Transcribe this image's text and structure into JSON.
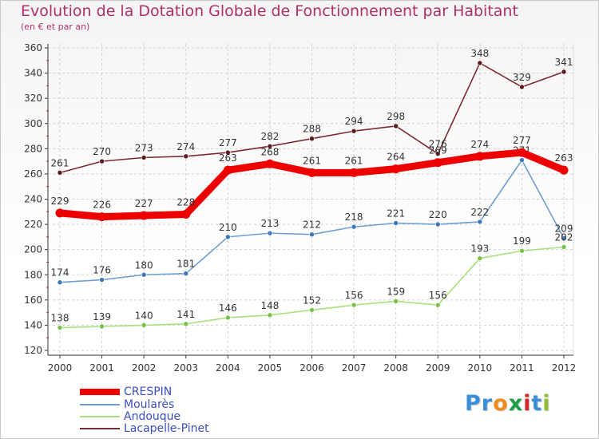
{
  "title": "Evolution de la Dotation Globale de Fonctionnement par Habitant",
  "subtitle": "(en € et par an)",
  "brand": {
    "text": "Proxiti",
    "letters": [
      "P",
      "r",
      "o",
      "x",
      "i",
      "t",
      "i"
    ],
    "colors": [
      "#3a8fd9",
      "#3a8fd9",
      "#f28b1e",
      "#1c9e47",
      "#d62a2a",
      "#3a8fd9",
      "#8fbf2f"
    ]
  },
  "chart_data": {
    "type": "line",
    "title": "Evolution de la Dotation Globale de Fonctionnement par Habitant",
    "subtitle": "(en € et par an)",
    "xlabel": "",
    "ylabel": "",
    "ylim": [
      120,
      360
    ],
    "yticks": [
      120,
      140,
      160,
      180,
      200,
      220,
      240,
      260,
      280,
      300,
      320,
      340,
      360
    ],
    "grid": true,
    "legend_position": "bottom-left",
    "categories": [
      "2000",
      "2001",
      "2002",
      "2003",
      "2004",
      "2005",
      "2006",
      "2007",
      "2008",
      "2009",
      "2010",
      "2011",
      "2012"
    ],
    "series": [
      {
        "name": "Lacapelle-Pinet",
        "color": "#7a2a2e",
        "dot": "#5a1a1e",
        "values": [
          261,
          270,
          273,
          274,
          277,
          282,
          288,
          294,
          298,
          276,
          348,
          329,
          341
        ]
      },
      {
        "name": "Moularès",
        "color": "#6f9fcf",
        "dot": "#3f78b8",
        "values": [
          174,
          176,
          180,
          181,
          210,
          213,
          212,
          218,
          221,
          220,
          222,
          271,
          209
        ]
      },
      {
        "name": "Andouque",
        "color": "#a9df7d",
        "dot": "#79c24a",
        "values": [
          138,
          139,
          140,
          141,
          146,
          148,
          152,
          156,
          159,
          156,
          193,
          199,
          202
        ]
      },
      {
        "name": "CRESPIN",
        "color": "#ee0000",
        "dot": "#ee0000",
        "values": [
          229,
          226,
          227,
          228,
          263,
          268,
          261,
          261,
          264,
          269,
          274,
          277,
          263
        ]
      }
    ],
    "legend_order": [
      "CRESPIN",
      "Moularès",
      "Andouque",
      "Lacapelle-Pinet"
    ]
  }
}
